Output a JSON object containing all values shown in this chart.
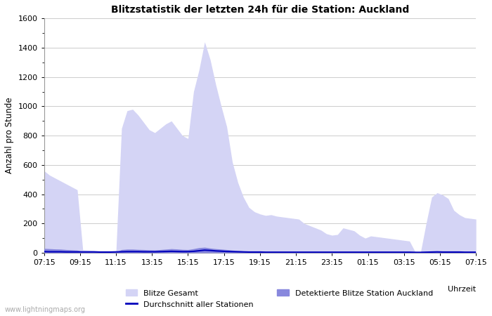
{
  "title": "Blitzstatistik der letzten 24h für die Station: Auckland",
  "ylabel": "Anzahl pro Stunde",
  "xlabel": "Uhrzeit",
  "watermark": "www.lightningmaps.org",
  "ylim": [
    0,
    1600
  ],
  "yticks": [
    0,
    200,
    400,
    600,
    800,
    1000,
    1200,
    1400,
    1600
  ],
  "xtick_labels": [
    "07:15",
    "09:15",
    "11:15",
    "13:15",
    "15:15",
    "17:15",
    "19:15",
    "21:15",
    "23:15",
    "01:15",
    "03:15",
    "05:15",
    "07:15"
  ],
  "legend": {
    "blitze_gesamt_label": "Blitze Gesamt",
    "detektierte_label": "Detektierte Blitze Station Auckland",
    "durchschnitt_label": "Durchschnitt aller Stationen",
    "blitze_gesamt_color": "#d4d4f5",
    "detektierte_color": "#8888dd",
    "durchschnitt_color": "#0000bb"
  },
  "background_color": "#ffffff",
  "grid_color": "#cccccc",
  "blitze_gesamt": [
    560,
    530,
    510,
    490,
    470,
    450,
    430,
    20,
    18,
    15,
    12,
    10,
    10,
    12,
    850,
    970,
    980,
    940,
    890,
    840,
    820,
    850,
    880,
    900,
    850,
    800,
    780,
    1100,
    1250,
    1440,
    1320,
    1150,
    1000,
    860,
    620,
    480,
    380,
    310,
    280,
    265,
    255,
    260,
    250,
    245,
    240,
    235,
    230,
    200,
    185,
    170,
    155,
    130,
    120,
    125,
    170,
    160,
    150,
    120,
    100,
    115,
    110,
    105,
    100,
    95,
    90,
    85,
    80,
    8,
    5,
    200,
    380,
    410,
    395,
    370,
    290,
    260,
    240,
    235,
    230
  ],
  "detektierte": [
    30,
    28,
    26,
    25,
    22,
    20,
    18,
    8,
    7,
    6,
    5,
    5,
    5,
    6,
    22,
    25,
    25,
    23,
    22,
    20,
    19,
    22,
    25,
    28,
    26,
    23,
    22,
    28,
    35,
    38,
    32,
    28,
    25,
    22,
    18,
    15,
    12,
    10,
    8,
    7,
    6,
    5,
    5,
    5,
    5,
    5,
    5,
    5,
    5,
    5,
    5,
    5,
    5,
    5,
    5,
    5,
    5,
    5,
    5,
    5,
    5,
    5,
    5,
    5,
    5,
    5,
    5,
    3,
    2,
    5,
    10,
    12,
    10,
    8,
    7,
    6,
    5,
    5,
    5
  ],
  "durchschnitt": [
    8,
    7,
    7,
    7,
    6,
    6,
    6,
    6,
    6,
    6,
    5,
    5,
    5,
    6,
    7,
    8,
    8,
    8,
    7,
    7,
    7,
    8,
    9,
    10,
    9,
    8,
    8,
    10,
    14,
    18,
    16,
    13,
    11,
    9,
    8,
    7,
    6,
    5,
    5,
    5,
    4,
    4,
    4,
    4,
    4,
    4,
    4,
    4,
    4,
    4,
    4,
    4,
    4,
    4,
    4,
    4,
    4,
    4,
    4,
    4,
    4,
    4,
    4,
    4,
    4,
    4,
    4,
    3,
    3,
    4,
    5,
    6,
    5,
    5,
    5,
    5,
    4,
    4,
    4
  ]
}
